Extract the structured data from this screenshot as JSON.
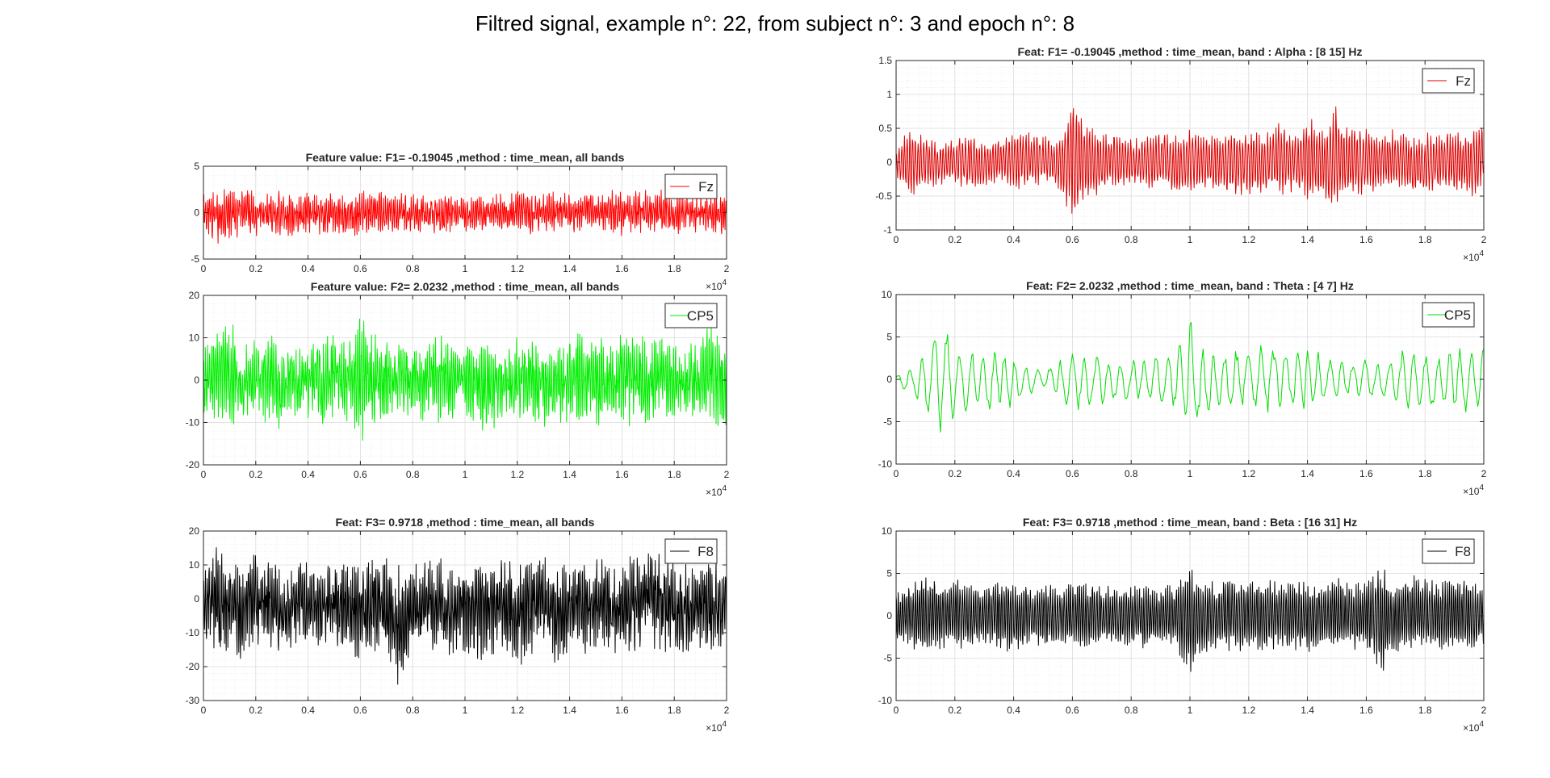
{
  "figure": {
    "title": "Filtred signal, example n°: 22, from subject n°: 3 and epoch n°: 8"
  },
  "chart_data": [
    {
      "type": "line",
      "title": "Feature value: F1= -0.19045 ,method : time_mean, all bands",
      "xlim": [
        0,
        20000
      ],
      "ylim": [
        -5,
        5
      ],
      "xticks": [
        "0",
        "0.2",
        "0.4",
        "0.6",
        "0.8",
        "1",
        "1.2",
        "1.4",
        "1.6",
        "1.8",
        "2"
      ],
      "yticks": [
        "-5",
        "0",
        "5"
      ],
      "x_exponent": "4",
      "grid": true,
      "legend": "top-right",
      "series": [
        {
          "name": "Fz",
          "color": "#ff0000",
          "x": [
            0,
            500,
            1000,
            1500,
            2000,
            2500,
            3000,
            3500,
            4000,
            4500,
            5000,
            5500,
            6000,
            6500,
            7000,
            7500,
            8000,
            8500,
            9000,
            9500,
            10000,
            10500,
            11000,
            11500,
            12000,
            12500,
            13000,
            13500,
            14000,
            14500,
            15000,
            15500,
            16000,
            16500,
            17000,
            17500,
            18000,
            18500,
            19000,
            19500,
            20000
          ],
          "upper": [
            2,
            2.8,
            2.8,
            2.5,
            2.4,
            2.3,
            2.5,
            2,
            2.2,
            2.3,
            2.2,
            2,
            2.6,
            2.3,
            2.2,
            2.1,
            2.3,
            2,
            2.3,
            2.2,
            2.4,
            2,
            2.3,
            2.1,
            2.6,
            2.3,
            2.2,
            2.3,
            2.5,
            2.2,
            2.2,
            2.6,
            2.2,
            2.4,
            2.8,
            2.5,
            2.3,
            2.2,
            2.4,
            2.2,
            2
          ],
          "lower": [
            -2,
            -3.5,
            -3.2,
            -2.5,
            -2.6,
            -2.3,
            -2.5,
            -2.8,
            -2.3,
            -2.4,
            -2.3,
            -2.5,
            -2.8,
            -2.4,
            -2.4,
            -2.3,
            -2.6,
            -2.3,
            -2.4,
            -2.2,
            -2.6,
            -2.3,
            -2.4,
            -2.2,
            -2.3,
            -2.4,
            -2.3,
            -2.2,
            -2.5,
            -2.3,
            -2.2,
            -2.3,
            -2.5,
            -2.3,
            -2.4,
            -2.3,
            -2.4,
            -2.3,
            -2.2,
            -2.5,
            -2.6
          ]
        }
      ]
    },
    {
      "type": "line",
      "title": "Feature value: F2= 2.0232 ,method : time_mean, all bands",
      "xlim": [
        0,
        20000
      ],
      "ylim": [
        -20,
        20
      ],
      "xticks": [
        "0",
        "0.2",
        "0.4",
        "0.6",
        "0.8",
        "1",
        "1.2",
        "1.4",
        "1.6",
        "1.8",
        "2"
      ],
      "yticks": [
        "-20",
        "-10",
        "0",
        "10",
        "20"
      ],
      "x_exponent": "4",
      "grid": true,
      "legend": "top-right",
      "series": [
        {
          "name": "CP5",
          "color": "#00ee00",
          "x": [
            0,
            500,
            1000,
            1500,
            2000,
            2500,
            3000,
            3500,
            4000,
            4500,
            5000,
            5500,
            6000,
            6500,
            7000,
            7500,
            8000,
            8500,
            9000,
            9500,
            10000,
            10500,
            11000,
            11500,
            12000,
            12500,
            13000,
            13500,
            14000,
            14500,
            15000,
            15500,
            16000,
            16500,
            17000,
            17500,
            18000,
            18500,
            19000,
            19500,
            20000
          ],
          "upper": [
            10,
            12,
            15,
            8,
            10,
            12,
            9,
            8,
            11,
            10,
            13,
            9,
            16,
            12,
            9,
            11,
            10,
            9,
            12,
            10,
            11,
            10,
            10,
            8,
            11,
            12,
            10,
            9,
            11,
            12,
            10,
            11,
            13,
            12,
            10,
            11,
            10,
            9,
            11,
            14,
            8
          ],
          "lower": [
            -12,
            -10,
            -13,
            -9,
            -11,
            -10,
            -12,
            -9,
            -10,
            -12,
            -11,
            -10,
            -16,
            -12,
            -10,
            -11,
            -9,
            -10,
            -11,
            -10,
            -9,
            -12,
            -13,
            -11,
            -10,
            -11,
            -12,
            -10,
            -11,
            -10,
            -12,
            -11,
            -10,
            -12,
            -11,
            -10,
            -9,
            -11,
            -10,
            -11,
            -12
          ]
        }
      ]
    },
    {
      "type": "line",
      "title": "Feat: F3= 0.9718 ,method : time_mean, all bands",
      "xlim": [
        0,
        20000
      ],
      "ylim": [
        -30,
        20
      ],
      "xticks": [
        "0",
        "0.2",
        "0.4",
        "0.6",
        "0.8",
        "1",
        "1.2",
        "1.4",
        "1.6",
        "1.8",
        "2"
      ],
      "yticks": [
        "-30",
        "-20",
        "-10",
        "0",
        "10",
        "20"
      ],
      "x_exponent": "4",
      "grid": true,
      "legend": "top-right",
      "series": [
        {
          "name": "F8",
          "color": "#000000",
          "x": [
            0,
            500,
            1000,
            1500,
            2000,
            2500,
            3000,
            3500,
            4000,
            4500,
            5000,
            5500,
            6000,
            6500,
            7000,
            7500,
            8000,
            8500,
            9000,
            9500,
            10000,
            10500,
            11000,
            11500,
            12000,
            12500,
            13000,
            13500,
            14000,
            14500,
            15000,
            15500,
            16000,
            16500,
            17000,
            17500,
            18000,
            18500,
            19000,
            19500,
            20000
          ],
          "upper": [
            8,
            16,
            13,
            10,
            15,
            12,
            11,
            14,
            12,
            9,
            13,
            11,
            10,
            15,
            12,
            10,
            11,
            12,
            13,
            10,
            11,
            15,
            13,
            12,
            11,
            13,
            14,
            10,
            12,
            11,
            13,
            12,
            10,
            14,
            17,
            15,
            12,
            11,
            13,
            12,
            10
          ],
          "lower": [
            -12,
            -18,
            -16,
            -20,
            -14,
            -15,
            -19,
            -15,
            -16,
            -14,
            -17,
            -15,
            -19,
            -16,
            -18,
            -27,
            -16,
            -17,
            -15,
            -18,
            -16,
            -19,
            -17,
            -15,
            -20,
            -18,
            -16,
            -21,
            -17,
            -18,
            -15,
            -19,
            -16,
            -17,
            -14,
            -16,
            -19,
            -17,
            -16,
            -18,
            -15
          ]
        }
      ]
    },
    {
      "type": "line",
      "title": "Feat: F1= -0.19045 ,method : time_mean, band : Alpha     : [8 15] Hz",
      "xlim": [
        0,
        20000
      ],
      "ylim": [
        -1,
        1.5
      ],
      "xticks": [
        "0",
        "0.2",
        "0.4",
        "0.6",
        "0.8",
        "1",
        "1.2",
        "1.4",
        "1.6",
        "1.8",
        "2"
      ],
      "yticks": [
        "-1",
        "-0.5",
        "0",
        "0.5",
        "1",
        "1.5"
      ],
      "x_exponent": "4",
      "grid": true,
      "legend": "top-right",
      "series": [
        {
          "name": "Fz",
          "color": "#dd0000",
          "x": [
            0,
            500,
            1000,
            1500,
            2000,
            2500,
            3000,
            3500,
            4000,
            4500,
            5000,
            5500,
            6000,
            6500,
            7000,
            7500,
            8000,
            8500,
            9000,
            9500,
            10000,
            10500,
            11000,
            11500,
            12000,
            12500,
            13000,
            13500,
            14000,
            14500,
            15000,
            15500,
            16000,
            16500,
            17000,
            17500,
            18000,
            18500,
            19000,
            19500,
            20000
          ],
          "upper": [
            0.2,
            0.55,
            0.4,
            0.3,
            0.35,
            0.5,
            0.3,
            0.35,
            0.45,
            0.55,
            0.4,
            0.35,
            1.05,
            0.6,
            0.4,
            0.5,
            0.35,
            0.4,
            0.5,
            0.45,
            0.5,
            0.4,
            0.45,
            0.55,
            0.5,
            0.45,
            0.6,
            0.45,
            0.7,
            0.55,
            0.85,
            0.6,
            0.55,
            0.45,
            0.5,
            0.4,
            0.45,
            0.4,
            0.5,
            0.45,
            0.55
          ],
          "lower": [
            -0.2,
            -0.55,
            -0.4,
            -0.35,
            -0.3,
            -0.45,
            -0.35,
            -0.3,
            -0.4,
            -0.45,
            -0.35,
            -0.4,
            -0.95,
            -0.6,
            -0.45,
            -0.4,
            -0.35,
            -0.4,
            -0.45,
            -0.5,
            -0.45,
            -0.4,
            -0.45,
            -0.5,
            -0.55,
            -0.45,
            -0.5,
            -0.45,
            -0.6,
            -0.55,
            -0.8,
            -0.55,
            -0.5,
            -0.45,
            -0.4,
            -0.45,
            -0.5,
            -0.4,
            -0.45,
            -0.55,
            -0.35
          ]
        }
      ]
    },
    {
      "type": "line",
      "title": "Feat: F2= 2.0232 ,method : time_mean, band : Theta     : [4 7] Hz",
      "xlim": [
        0,
        20000
      ],
      "ylim": [
        -10,
        10
      ],
      "xticks": [
        "0",
        "0.2",
        "0.4",
        "0.6",
        "0.8",
        "1",
        "1.2",
        "1.4",
        "1.6",
        "1.8",
        "2"
      ],
      "yticks": [
        "-10",
        "-5",
        "0",
        "5",
        "10"
      ],
      "x_exponent": "4",
      "grid": true,
      "legend": "top-right",
      "series": [
        {
          "name": "CP5",
          "color": "#00dd00",
          "x": [
            0,
            500,
            1000,
            1500,
            2000,
            2500,
            3000,
            3500,
            4000,
            4500,
            5000,
            5500,
            6000,
            6500,
            7000,
            7500,
            8000,
            8500,
            9000,
            9500,
            10000,
            10500,
            11000,
            11500,
            12000,
            12500,
            13000,
            13500,
            14000,
            14500,
            15000,
            15500,
            16000,
            16500,
            17000,
            17500,
            18000,
            18500,
            19000,
            19500,
            20000
          ],
          "upper": [
            0.5,
            1.5,
            4,
            7.5,
            4,
            3.5,
            3,
            4,
            3,
            2,
            1,
            2,
            4,
            3,
            3.5,
            2,
            3,
            2.5,
            3.5,
            4,
            7.5,
            4,
            3,
            4,
            3.5,
            4.5,
            4,
            3.5,
            4,
            3,
            2.5,
            2,
            2.5,
            2,
            3,
            4,
            3.5,
            3,
            4,
            3.5,
            5
          ],
          "lower": [
            -0.5,
            -2,
            -4,
            -7,
            -5,
            -4,
            -3.5,
            -4,
            -3.5,
            -2,
            -1,
            -2,
            -4.5,
            -3.5,
            -4,
            -2.5,
            -3,
            -2.5,
            -3.5,
            -4,
            -7,
            -5,
            -3.5,
            -4,
            -3.5,
            -4.5,
            -4,
            -3.5,
            -4,
            -3,
            -2.5,
            -2,
            -2.5,
            -2.5,
            -3,
            -4,
            -3.5,
            -3,
            -4,
            -4,
            -3
          ]
        }
      ]
    },
    {
      "type": "line",
      "title": "Feat: F3= 0.9718 ,method : time_mean, band : Beta      : [16 31] Hz",
      "xlim": [
        0,
        20000
      ],
      "ylim": [
        -10,
        10
      ],
      "xticks": [
        "0",
        "0.2",
        "0.4",
        "0.6",
        "0.8",
        "1",
        "1.2",
        "1.4",
        "1.6",
        "1.8",
        "2"
      ],
      "yticks": [
        "-10",
        "-5",
        "0",
        "5",
        "10"
      ],
      "x_exponent": "4",
      "grid": true,
      "legend": "top-right",
      "series": [
        {
          "name": "F8",
          "color": "#000000",
          "x": [
            0,
            500,
            1000,
            1500,
            2000,
            2500,
            3000,
            3500,
            4000,
            4500,
            5000,
            5500,
            6000,
            6500,
            7000,
            7500,
            8000,
            8500,
            9000,
            9500,
            10000,
            10500,
            11000,
            11500,
            12000,
            12500,
            13000,
            13500,
            14000,
            14500,
            15000,
            15500,
            16000,
            16500,
            17000,
            17500,
            18000,
            18500,
            19000,
            19500,
            20000
          ],
          "upper": [
            3,
            4,
            5,
            4,
            4.5,
            4,
            3.5,
            4.5,
            4,
            3.5,
            4,
            3.5,
            4,
            4,
            3.5,
            4,
            3.5,
            4,
            3.5,
            4,
            6,
            4.5,
            4,
            5,
            4,
            4.5,
            4,
            4.5,
            4,
            4,
            5,
            4,
            4.5,
            6,
            4,
            5,
            4.5,
            4,
            5,
            4,
            3.5
          ],
          "lower": [
            -3,
            -4,
            -4.5,
            -4,
            -4,
            -4,
            -3.5,
            -4,
            -4.5,
            -3.5,
            -4,
            -3.5,
            -4,
            -4,
            -3.5,
            -4,
            -3.5,
            -4,
            -3.5,
            -4,
            -7,
            -4.5,
            -4,
            -4.5,
            -4,
            -4.5,
            -4,
            -4,
            -4.5,
            -4,
            -4.5,
            -4,
            -4,
            -7,
            -4.5,
            -4.5,
            -4,
            -4,
            -4.5,
            -4,
            -3.5
          ]
        }
      ]
    }
  ]
}
